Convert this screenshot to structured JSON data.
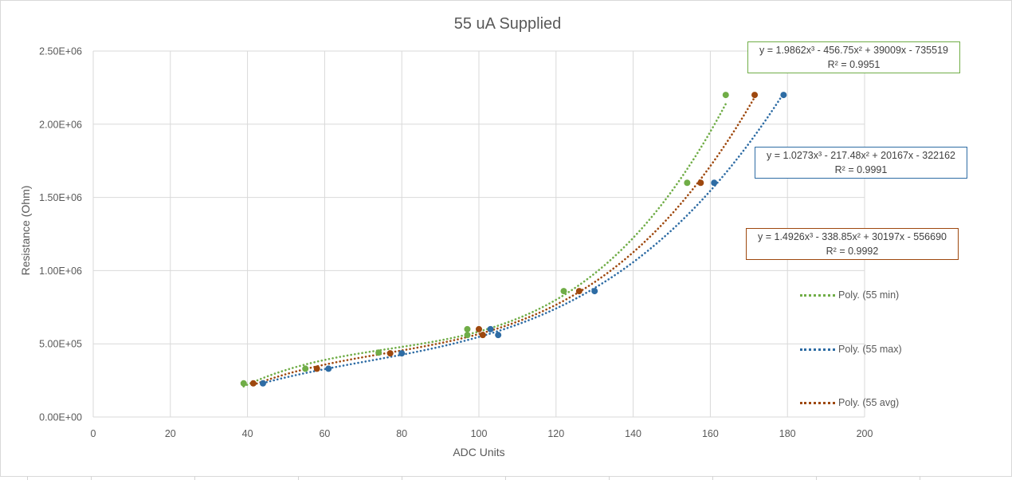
{
  "chart_data": {
    "type": "scatter",
    "title": "55 uA Supplied",
    "xlabel": "ADC Units",
    "ylabel": "Resistance (Ohm)",
    "xlim": [
      0,
      200
    ],
    "ylim": [
      0,
      2500000
    ],
    "x_ticks": [
      "0",
      "20",
      "40",
      "60",
      "80",
      "100",
      "120",
      "140",
      "160",
      "180",
      "200"
    ],
    "y_ticks": [
      "0.00E+00",
      "5.00E+05",
      "1.00E+06",
      "1.50E+06",
      "2.00E+06",
      "2.50E+06"
    ],
    "grid": true,
    "series": [
      {
        "key": "min",
        "color": "#70ad47",
        "points": [
          [
            39,
            230000
          ],
          [
            55,
            330000
          ],
          [
            74,
            440000
          ],
          [
            97,
            560000
          ],
          [
            97,
            600000
          ],
          [
            122,
            860000
          ],
          [
            154,
            1600000
          ],
          [
            164,
            2200000
          ]
        ],
        "fit": {
          "coeffs": [
            1.9862,
            -456.75,
            39009,
            -735519
          ],
          "x_range": [
            39,
            164
          ]
        },
        "equation": "y = 1.9862x³ - 456.75x² + 39009x - 735519",
        "r2": "R² = 0.9951",
        "trendline_label": "Poly. (55 min)"
      },
      {
        "key": "max",
        "color": "#2e6ca4",
        "points": [
          [
            44,
            230000
          ],
          [
            61,
            330000
          ],
          [
            80,
            435000
          ],
          [
            105,
            560000
          ],
          [
            103,
            600000
          ],
          [
            130,
            860000
          ],
          [
            161,
            1600000
          ],
          [
            179,
            2200000
          ]
        ],
        "fit": {
          "coeffs": [
            1.0273,
            -217.48,
            20167,
            -322162
          ],
          "x_range": [
            44,
            179
          ]
        },
        "equation": "y = 1.0273x³ - 217.48x² + 20167x - 322162",
        "r2": "R² = 0.9991",
        "trendline_label": "Poly. (55 max)"
      },
      {
        "key": "avg",
        "color": "#9e480e",
        "points": [
          [
            41.5,
            230000
          ],
          [
            58,
            330000
          ],
          [
            77,
            435000
          ],
          [
            101,
            560000
          ],
          [
            100,
            600000
          ],
          [
            126,
            860000
          ],
          [
            157.5,
            1600000
          ],
          [
            171.5,
            2200000
          ]
        ],
        "fit": {
          "coeffs": [
            1.4926,
            -338.85,
            30197,
            -556690
          ],
          "x_range": [
            41.5,
            171.5
          ]
        },
        "equation": "y = 1.4926x³ - 338.85x² + 30197x - 556690",
        "r2": "R² = 0.9992",
        "trendline_label": "Poly. (55 avg)"
      }
    ]
  }
}
